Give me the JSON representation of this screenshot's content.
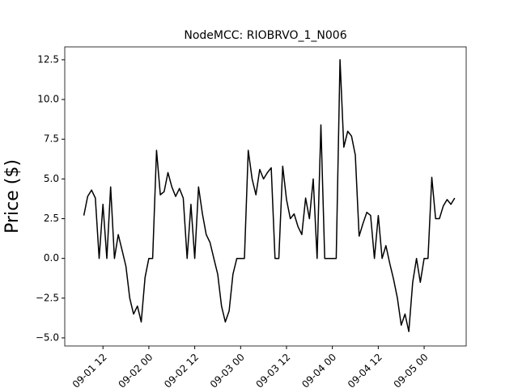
{
  "chart_data": {
    "type": "line",
    "title": "NodeMCC: RIOBRVO_1_N006",
    "y_label": "Price ($)",
    "x": [
      "09-01 07",
      "09-01 08",
      "09-01 09",
      "09-01 10",
      "09-01 11",
      "09-01 12",
      "09-01 13",
      "09-01 14",
      "09-01 15",
      "09-01 16",
      "09-01 17",
      "09-01 18",
      "09-01 19",
      "09-01 20",
      "09-01 21",
      "09-01 22",
      "09-01 23",
      "09-02 00",
      "09-02 01",
      "09-02 02",
      "09-02 03",
      "09-02 04",
      "09-02 05",
      "09-02 06",
      "09-02 07",
      "09-02 08",
      "09-02 09",
      "09-02 10",
      "09-02 11",
      "09-02 12",
      "09-02 13",
      "09-02 14",
      "09-02 15",
      "09-02 16",
      "09-02 17",
      "09-02 18",
      "09-02 19",
      "09-02 20",
      "09-02 21",
      "09-02 22",
      "09-02 23",
      "09-03 00",
      "09-03 01",
      "09-03 02",
      "09-03 03",
      "09-03 04",
      "09-03 05",
      "09-03 06",
      "09-03 07",
      "09-03 08",
      "09-03 09",
      "09-03 10",
      "09-03 11",
      "09-03 12",
      "09-03 13",
      "09-03 14",
      "09-03 15",
      "09-03 16",
      "09-03 17",
      "09-03 18",
      "09-03 19",
      "09-03 20",
      "09-03 21",
      "09-03 22",
      "09-03 23",
      "09-04 00",
      "09-04 01",
      "09-04 02",
      "09-04 03",
      "09-04 04",
      "09-04 05",
      "09-04 06",
      "09-04 07",
      "09-04 08",
      "09-04 09",
      "09-04 10",
      "09-04 11",
      "09-04 12",
      "09-04 13",
      "09-04 14",
      "09-04 15",
      "09-04 16",
      "09-04 17",
      "09-04 18",
      "09-04 19",
      "09-04 20",
      "09-04 21",
      "09-04 22",
      "09-04 23",
      "09-05 00",
      "09-05 01",
      "09-05 02",
      "09-05 03",
      "09-05 04",
      "09-05 05",
      "09-05 06",
      "09-05 07",
      "09-05 08"
    ],
    "series": [
      {
        "color": "#000000",
        "values": [
          2.7,
          3.9,
          4.3,
          3.8,
          0,
          3.4,
          0,
          4.5,
          0,
          1.5,
          0.5,
          -0.5,
          -2.5,
          -3.5,
          -3.0,
          -4.0,
          -1.2,
          0,
          0,
          6.8,
          4.0,
          4.2,
          5.4,
          4.5,
          3.9,
          4.4,
          3.8,
          0,
          3.4,
          0,
          4.5,
          2.8,
          1.5,
          1.0,
          0.0,
          -1.0,
          -3.0,
          -4.0,
          -3.3,
          -1.0,
          0,
          0,
          0,
          6.8,
          5.0,
          4.0,
          5.6,
          5.0,
          5.4,
          5.7,
          0,
          0,
          5.8,
          3.7,
          2.5,
          2.8,
          2.0,
          1.5,
          3.8,
          2.5,
          5.0,
          0,
          8.4,
          0,
          0,
          0,
          0,
          12.5,
          7.0,
          8.0,
          7.7,
          6.5,
          1.4,
          2.2,
          2.9,
          2.7,
          0,
          2.7,
          0,
          0.8,
          -0.3,
          -1.3,
          -2.5,
          -4.2,
          -3.5,
          -4.6,
          -1.5,
          0,
          -1.5,
          0,
          0,
          5.1,
          2.5,
          2.5,
          3.3,
          3.7,
          3.4,
          3.8
        ]
      }
    ],
    "xlim": [
      "09-01 02",
      "09-05 11"
    ],
    "xticks": [
      "09-01 12",
      "09-02 00",
      "09-02 12",
      "09-03 00",
      "09-03 12",
      "09-04 00",
      "09-04 12",
      "09-05 00"
    ],
    "ylim": [
      -5.51,
      13.31
    ],
    "yticks": [
      {
        "value": -5,
        "label": "−5.0"
      },
      {
        "value": -2.5,
        "label": "−2.5"
      },
      {
        "value": 0,
        "label": "0.0"
      },
      2.5,
      {
        "value": 5,
        "label": "5.0"
      },
      7.5,
      {
        "value": 10,
        "label": "10.0"
      },
      12.5
    ]
  }
}
